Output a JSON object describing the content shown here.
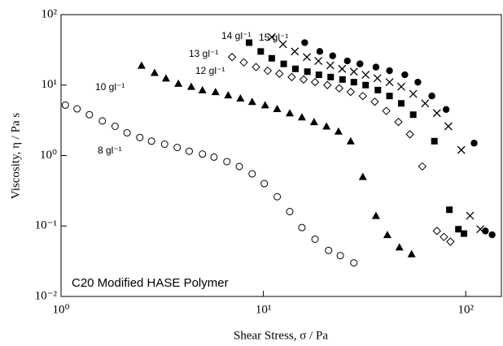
{
  "chart_data": {
    "type": "scatter",
    "log_x": true,
    "log_y": true,
    "xlabel": "Shear Stress, σ / Pa",
    "ylabel": "Viscosity, η / Pa s",
    "annotation": "C20 Modified HASE Polymer",
    "xlim": [
      1,
      150
    ],
    "ylim": [
      0.01,
      100
    ],
    "xticks": [
      {
        "value": 1,
        "label": "10⁰"
      },
      {
        "value": 10,
        "label": "10¹"
      },
      {
        "value": 100,
        "label": "10²"
      }
    ],
    "yticks": [
      {
        "value": 0.01,
        "label": "10⁻²"
      },
      {
        "value": 0.1,
        "label": "10⁻¹"
      },
      {
        "value": 1,
        "label": "10⁰"
      },
      {
        "value": 10,
        "label": "10¹"
      },
      {
        "value": 100,
        "label": "10²"
      }
    ],
    "series": [
      {
        "name": "8 gl⁻¹",
        "marker": "circle-open",
        "color": "#000000",
        "x": [
          1.05,
          1.2,
          1.38,
          1.6,
          1.85,
          2.12,
          2.45,
          2.8,
          3.25,
          3.75,
          4.3,
          5,
          5.7,
          6.6,
          7.6,
          8.8,
          10.1,
          11.7,
          13.5,
          15.5,
          18,
          21,
          24,
          28
        ],
        "values": [
          5.2,
          4.6,
          3.8,
          3.1,
          2.6,
          2.1,
          1.8,
          1.6,
          1.45,
          1.3,
          1.15,
          1.05,
          0.95,
          0.82,
          0.7,
          0.55,
          0.4,
          0.26,
          0.16,
          0.095,
          0.065,
          0.045,
          0.038,
          0.03
        ]
      },
      {
        "name": "10 gl⁻¹",
        "marker": "triangle",
        "color": "#000000",
        "x": [
          2.5,
          2.9,
          3.3,
          3.8,
          4.4,
          5,
          5.8,
          6.7,
          7.7,
          8.8,
          10.2,
          11.7,
          13.5,
          15.5,
          17.8,
          20.5,
          23.5,
          27,
          31,
          36,
          41,
          47,
          54
        ],
        "values": [
          19,
          15,
          12.5,
          10.5,
          9.5,
          8.5,
          8,
          7.2,
          6.5,
          5.8,
          5.2,
          4.6,
          4,
          3.5,
          3,
          2.6,
          2.2,
          1.6,
          0.5,
          0.14,
          0.075,
          0.05,
          0.04
        ]
      },
      {
        "name": "12 gl⁻¹",
        "marker": "diamond-open",
        "color": "#000000",
        "x": [
          7,
          8,
          9.2,
          10.5,
          12,
          13.8,
          15.8,
          18,
          20.7,
          23.7,
          27,
          31,
          35.5,
          40.5,
          46.5,
          53,
          61,
          72,
          78,
          84
        ],
        "values": [
          25,
          21,
          18,
          16,
          14.5,
          13,
          12,
          11,
          10,
          9,
          8,
          7,
          5.8,
          4.3,
          3,
          2,
          0.7,
          0.085,
          0.07,
          0.06
        ]
      },
      {
        "name": "13 gl⁻¹",
        "marker": "square",
        "color": "#000000",
        "x": [
          8.5,
          9.7,
          11,
          12.6,
          14.4,
          16.5,
          18.8,
          21.5,
          24.6,
          28,
          32,
          36.8,
          42,
          48,
          55,
          70,
          83,
          92,
          98
        ],
        "values": [
          40,
          30,
          24,
          20,
          17,
          15.5,
          14,
          13,
          12,
          11,
          10,
          8.5,
          7,
          5.5,
          3.8,
          1.6,
          0.17,
          0.09,
          0.078
        ]
      },
      {
        "name": "14 gl⁻¹",
        "marker": "x",
        "color": "#000000",
        "x": [
          11,
          12.5,
          14.3,
          16.4,
          18.7,
          21.4,
          24.5,
          28,
          32,
          36.6,
          42,
          48,
          55,
          63,
          72,
          82,
          95,
          105,
          118
        ],
        "values": [
          48,
          38,
          30,
          25,
          22,
          19,
          17,
          15.5,
          14,
          12.5,
          11,
          9.5,
          7.5,
          5.5,
          4,
          2.6,
          1.2,
          0.14,
          0.09
        ]
      },
      {
        "name": "15 gl⁻¹",
        "marker": "circle",
        "color": "#000000",
        "x": [
          16,
          19,
          22,
          26,
          30,
          36,
          42,
          50,
          58,
          68,
          80,
          110,
          125,
          135
        ],
        "values": [
          40,
          30,
          26,
          22,
          20,
          18,
          16,
          14,
          11,
          7,
          4.5,
          1.5,
          0.085,
          0.075
        ]
      }
    ]
  }
}
